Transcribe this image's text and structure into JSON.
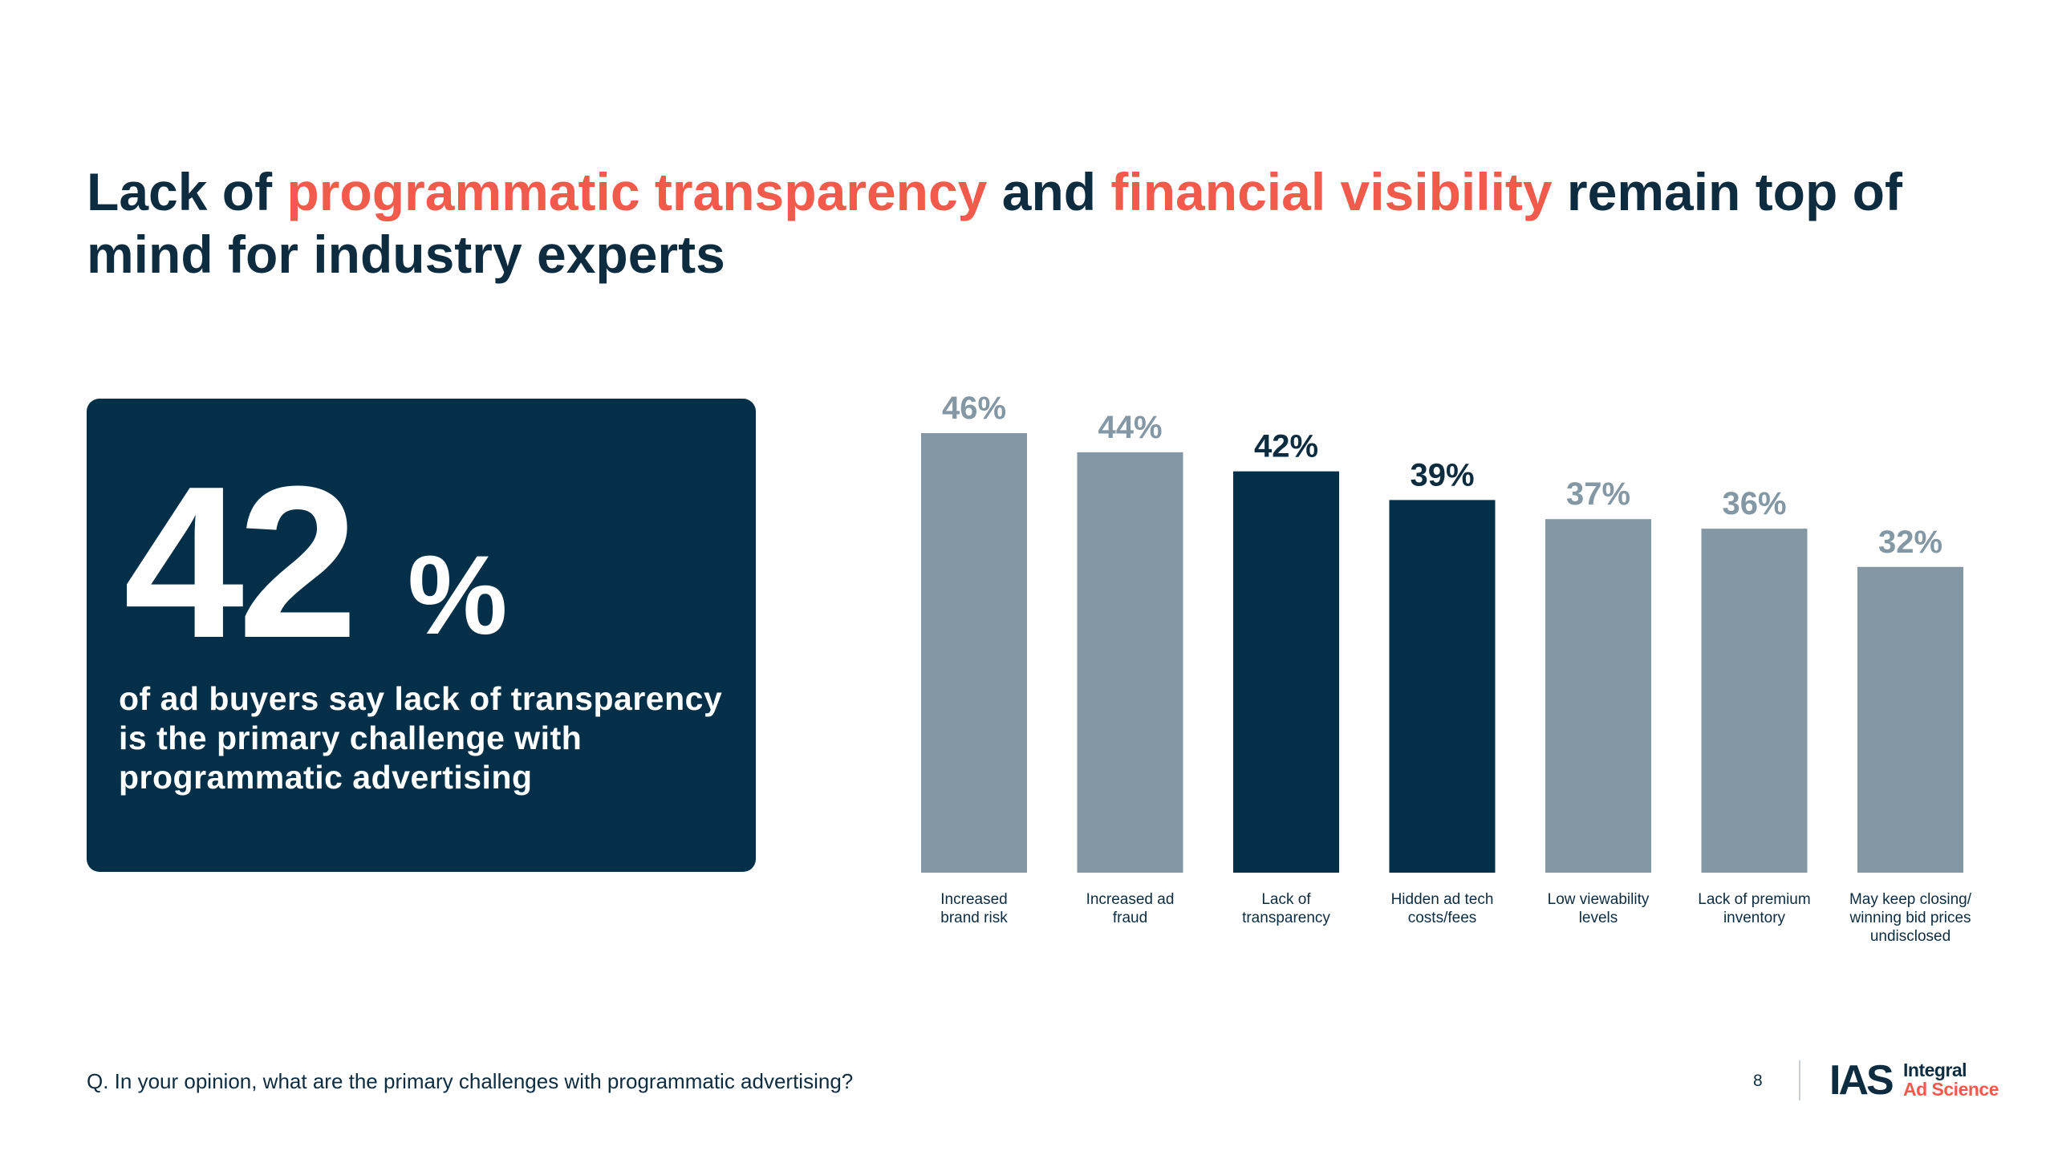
{
  "headline": {
    "part1": "Lack of ",
    "highlight1": "programmatic transparency",
    "part2": " and ",
    "highlight2": "financial visibility",
    "part3": " remain top of mind for industry experts"
  },
  "stat_card": {
    "number": "42",
    "unit": "%",
    "caption": "of ad buyers say lack of transparency is the primary challenge with programmatic advertising"
  },
  "chart_data": {
    "type": "bar",
    "categories": [
      [
        "Increased",
        "brand risk"
      ],
      [
        "Increased ad",
        "fraud"
      ],
      [
        "Lack of",
        "transparency"
      ],
      [
        "Hidden ad tech",
        "costs/fees"
      ],
      [
        "Low viewability",
        "levels"
      ],
      [
        "Lack of premium",
        "inventory"
      ],
      [
        "May keep closing/",
        "winning bid prices",
        "undisclosed"
      ]
    ],
    "values": [
      46,
      44,
      42,
      39,
      37,
      36,
      32
    ],
    "value_labels": [
      "46%",
      "44%",
      "42%",
      "39%",
      "37%",
      "36%",
      "32%"
    ],
    "highlighted": [
      false,
      false,
      true,
      true,
      false,
      false,
      false
    ],
    "ylim": [
      0,
      46
    ],
    "colors": {
      "default_bar": "#8398a4",
      "highlight_bar": "#033048",
      "default_label": "#8398a4",
      "highlight_label": "#0d2c40"
    },
    "grid": false,
    "legend": "none"
  },
  "footer": {
    "question": "Q. In your opinion, what are the primary challenges with programmatic advertising?",
    "page_number": "8",
    "logo_mark": "IAS",
    "logo_line1": "Integral",
    "logo_line2": "Ad Science"
  },
  "colors": {
    "navy": "#0d2c40",
    "accent": "#f25a4c",
    "card": "#033048"
  }
}
